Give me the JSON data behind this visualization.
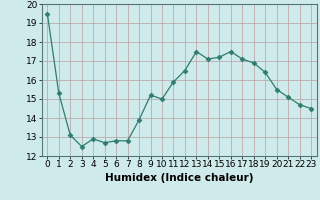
{
  "x": [
    0,
    1,
    2,
    3,
    4,
    5,
    6,
    7,
    8,
    9,
    10,
    11,
    12,
    13,
    14,
    15,
    16,
    17,
    18,
    19,
    20,
    21,
    22,
    23
  ],
  "y": [
    19.5,
    15.3,
    13.1,
    12.5,
    12.9,
    12.7,
    12.8,
    12.8,
    13.9,
    15.2,
    15.0,
    15.9,
    16.5,
    17.5,
    17.1,
    17.2,
    17.5,
    17.1,
    16.9,
    16.4,
    15.5,
    15.1,
    14.7,
    14.5
  ],
  "line_color": "#2e7d6e",
  "marker": "D",
  "marker_size": 2.5,
  "bg_color": "#ceeaea",
  "grid_color": "#b8a0a0",
  "xlabel": "Humidex (Indice chaleur)",
  "ylim": [
    12,
    20
  ],
  "xlim_min": -0.5,
  "xlim_max": 23.5,
  "yticks": [
    12,
    13,
    14,
    15,
    16,
    17,
    18,
    19,
    20
  ],
  "xticks": [
    0,
    1,
    2,
    3,
    4,
    5,
    6,
    7,
    8,
    9,
    10,
    11,
    12,
    13,
    14,
    15,
    16,
    17,
    18,
    19,
    20,
    21,
    22,
    23
  ],
  "xtick_labels": [
    "0",
    "1",
    "2",
    "3",
    "4",
    "5",
    "6",
    "7",
    "8",
    "9",
    "10",
    "11",
    "12",
    "13",
    "14",
    "15",
    "16",
    "17",
    "18",
    "19",
    "20",
    "21",
    "22",
    "23"
  ],
  "tick_font_size": 6.5,
  "label_font_size": 7.5
}
